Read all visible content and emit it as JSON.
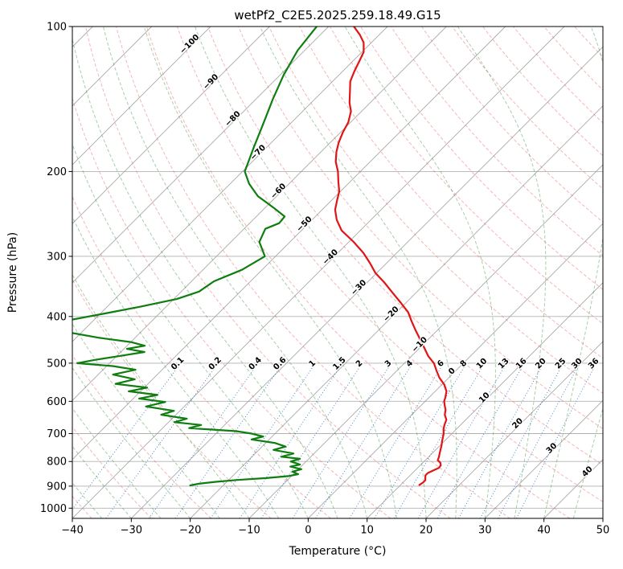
{
  "title": "wetPf2_C2E5.2025.259.18.49.G15",
  "x_axis": {
    "label": "Temperature (°C)",
    "ticks": [
      -40,
      -30,
      -20,
      -10,
      0,
      10,
      20,
      30,
      40,
      50
    ]
  },
  "y_axis": {
    "label": "Pressure (hPa)",
    "ticks": [
      100,
      200,
      300,
      400,
      500,
      600,
      700,
      800,
      900,
      1000
    ]
  },
  "colors": {
    "grid": "#b2b2b2",
    "isotherm": "#9a9a9a",
    "dry_adiabat": "#e2605f",
    "moist_adiabat": "#2f8b33",
    "mixing_ratio": "#3a7ec2",
    "temperature_line": "#e01515",
    "dewpoint_line": "#0f7d0f",
    "label_cold": "#3a7ec2",
    "label_zero": "#6b6b5f",
    "label_warm": "#c03a3a"
  },
  "chart_data": {
    "type": "line",
    "variant": "skewT-logP",
    "title": "wetPf2_C2E5.2025.259.18.49.G15",
    "xlabel": "Temperature (°C)",
    "ylabel": "Pressure (hPa)",
    "x_range_c": [
      -40,
      50
    ],
    "pressure_range_hpa": [
      100,
      1050
    ],
    "skew_degrees": 45,
    "isotherm_step_c": 10,
    "isotherm_label_values": [
      -100,
      -90,
      -80,
      -70,
      -60,
      -50,
      -40,
      -30,
      -20,
      -10,
      0,
      10,
      20,
      30,
      40
    ],
    "mixing_ratio_labels_g_kg": [
      0.1,
      0.2,
      0.4,
      0.6,
      1,
      1.5,
      2,
      3,
      4,
      6,
      8,
      10,
      13,
      16,
      20,
      25,
      30,
      36
    ],
    "dry_adiabats_theta_c": {
      "start": -40,
      "end": 190,
      "step": 10
    },
    "moist_adiabats_t0_c": {
      "start": -55,
      "end": 45,
      "step": 5
    },
    "series": [
      {
        "name": "temperature",
        "color": "#e01515",
        "style": "solid",
        "points": [
          [
            100,
            -75.7
          ],
          [
            104,
            -73.3
          ],
          [
            108,
            -71.3
          ],
          [
            113,
            -69.7
          ],
          [
            118,
            -68.9
          ],
          [
            124,
            -68.0
          ],
          [
            130,
            -67.0
          ],
          [
            137,
            -65.2
          ],
          [
            144,
            -63.5
          ],
          [
            150,
            -61.8
          ],
          [
            158,
            -60.4
          ],
          [
            166,
            -59.6
          ],
          [
            174,
            -58.6
          ],
          [
            182,
            -57.4
          ],
          [
            191,
            -55.8
          ],
          [
            200,
            -53.8
          ],
          [
            210,
            -52.0
          ],
          [
            220,
            -50.2
          ],
          [
            230,
            -49.0
          ],
          [
            240,
            -47.8
          ],
          [
            252,
            -45.8
          ],
          [
            265,
            -43.2
          ],
          [
            280,
            -39.2
          ],
          [
            295,
            -35.7
          ],
          [
            310,
            -32.8
          ],
          [
            325,
            -30.2
          ],
          [
            340,
            -27.1
          ],
          [
            358,
            -23.8
          ],
          [
            375,
            -20.8
          ],
          [
            392,
            -18.0
          ],
          [
            410,
            -15.8
          ],
          [
            428,
            -13.6
          ],
          [
            446,
            -11.4
          ],
          [
            465,
            -9.2
          ],
          [
            483,
            -7.2
          ],
          [
            500,
            -5.0
          ],
          [
            518,
            -3.3
          ],
          [
            536,
            -1.6
          ],
          [
            554,
            0.4
          ],
          [
            572,
            1.9
          ],
          [
            590,
            2.8
          ],
          [
            600,
            3.2
          ],
          [
            612,
            4.0
          ],
          [
            625,
            4.9
          ],
          [
            640,
            5.6
          ],
          [
            655,
            6.7
          ],
          [
            670,
            7.2
          ],
          [
            685,
            7.8
          ],
          [
            700,
            8.6
          ],
          [
            715,
            9.2
          ],
          [
            728,
            9.7
          ],
          [
            742,
            10.3
          ],
          [
            756,
            10.8
          ],
          [
            770,
            11.3
          ],
          [
            784,
            11.8
          ],
          [
            795,
            12.1
          ],
          [
            805,
            13.0
          ],
          [
            815,
            13.5
          ],
          [
            825,
            13.6
          ],
          [
            835,
            13.1
          ],
          [
            845,
            12.6
          ],
          [
            855,
            12.6
          ],
          [
            865,
            13.0
          ],
          [
            875,
            13.4
          ],
          [
            885,
            13.4
          ],
          [
            895,
            13.2
          ]
        ]
      },
      {
        "name": "dewpoint",
        "color": "#0f7d0f",
        "style": "solid",
        "points": [
          [
            100,
            -82.0
          ],
          [
            112,
            -81.2
          ],
          [
            126,
            -79.4
          ],
          [
            141,
            -77.2
          ],
          [
            159,
            -74.6
          ],
          [
            178,
            -72.2
          ],
          [
            200,
            -69.6
          ],
          [
            212,
            -66.8
          ],
          [
            225,
            -63.2
          ],
          [
            238,
            -58.5
          ],
          [
            248,
            -55.2
          ],
          [
            256,
            -55.0
          ],
          [
            263,
            -56.4
          ],
          [
            280,
            -55.2
          ],
          [
            300,
            -51.8
          ],
          [
            320,
            -53.4
          ],
          [
            338,
            -56.2
          ],
          [
            355,
            -57.0
          ],
          [
            368,
            -59.5
          ],
          [
            382,
            -64.5
          ],
          [
            395,
            -69.5
          ],
          [
            408,
            -74.5
          ],
          [
            420,
            -76.0
          ],
          [
            432,
            -72.0
          ],
          [
            443,
            -66.0
          ],
          [
            452,
            -60.0
          ],
          [
            460,
            -57.0
          ],
          [
            467,
            -59.5
          ],
          [
            474,
            -56.0
          ],
          [
            483,
            -59.5
          ],
          [
            492,
            -63.0
          ],
          [
            500,
            -65.5
          ],
          [
            507,
            -59.0
          ],
          [
            516,
            -54.5
          ],
          [
            528,
            -57.5
          ],
          [
            540,
            -53.0
          ],
          [
            552,
            -55.5
          ],
          [
            562,
            -49.5
          ],
          [
            572,
            -52.0
          ],
          [
            582,
            -46.5
          ],
          [
            592,
            -49.0
          ],
          [
            602,
            -44.0
          ],
          [
            615,
            -46.5
          ],
          [
            628,
            -41.0
          ],
          [
            640,
            -42.5
          ],
          [
            652,
            -37.5
          ],
          [
            663,
            -39.0
          ],
          [
            672,
            -34.0
          ],
          [
            682,
            -35.5
          ],
          [
            692,
            -27.0
          ],
          [
            700,
            -24.0
          ],
          [
            710,
            -21.5
          ],
          [
            720,
            -23.0
          ],
          [
            732,
            -18.5
          ],
          [
            745,
            -16.0
          ],
          [
            757,
            -17.5
          ],
          [
            770,
            -13.5
          ],
          [
            782,
            -15.0
          ],
          [
            790,
            -11.5
          ],
          [
            800,
            -12.6
          ],
          [
            812,
            -10.5
          ],
          [
            820,
            -11.8
          ],
          [
            830,
            -9.5
          ],
          [
            840,
            -10.6
          ],
          [
            850,
            -9.2
          ],
          [
            858,
            -10.5
          ],
          [
            866,
            -14.0
          ],
          [
            874,
            -18.5
          ],
          [
            882,
            -22.0
          ],
          [
            890,
            -24.5
          ],
          [
            897,
            -25.6
          ]
        ]
      }
    ]
  }
}
